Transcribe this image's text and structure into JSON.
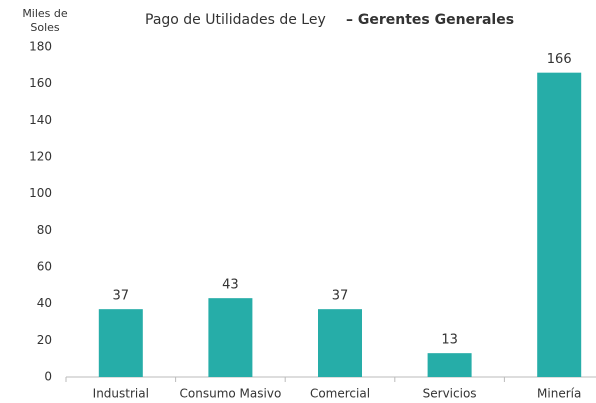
{
  "chart_data": {
    "type": "bar",
    "title": "Pago de Utilidades de Ley",
    "subtitle": "– Gerentes Generales",
    "ylabel": [
      "Miles de",
      "Soles"
    ],
    "categories": [
      "Industrial",
      "Consumo Masivo",
      "Comercial",
      "Servicios",
      "Minería"
    ],
    "values": [
      37,
      43,
      37,
      13,
      166
    ],
    "color": "#26ada8",
    "ylim": [
      0,
      180
    ],
    "yticks": [
      0,
      20,
      40,
      60,
      80,
      100,
      120,
      140,
      160,
      180
    ],
    "grid": false
  }
}
